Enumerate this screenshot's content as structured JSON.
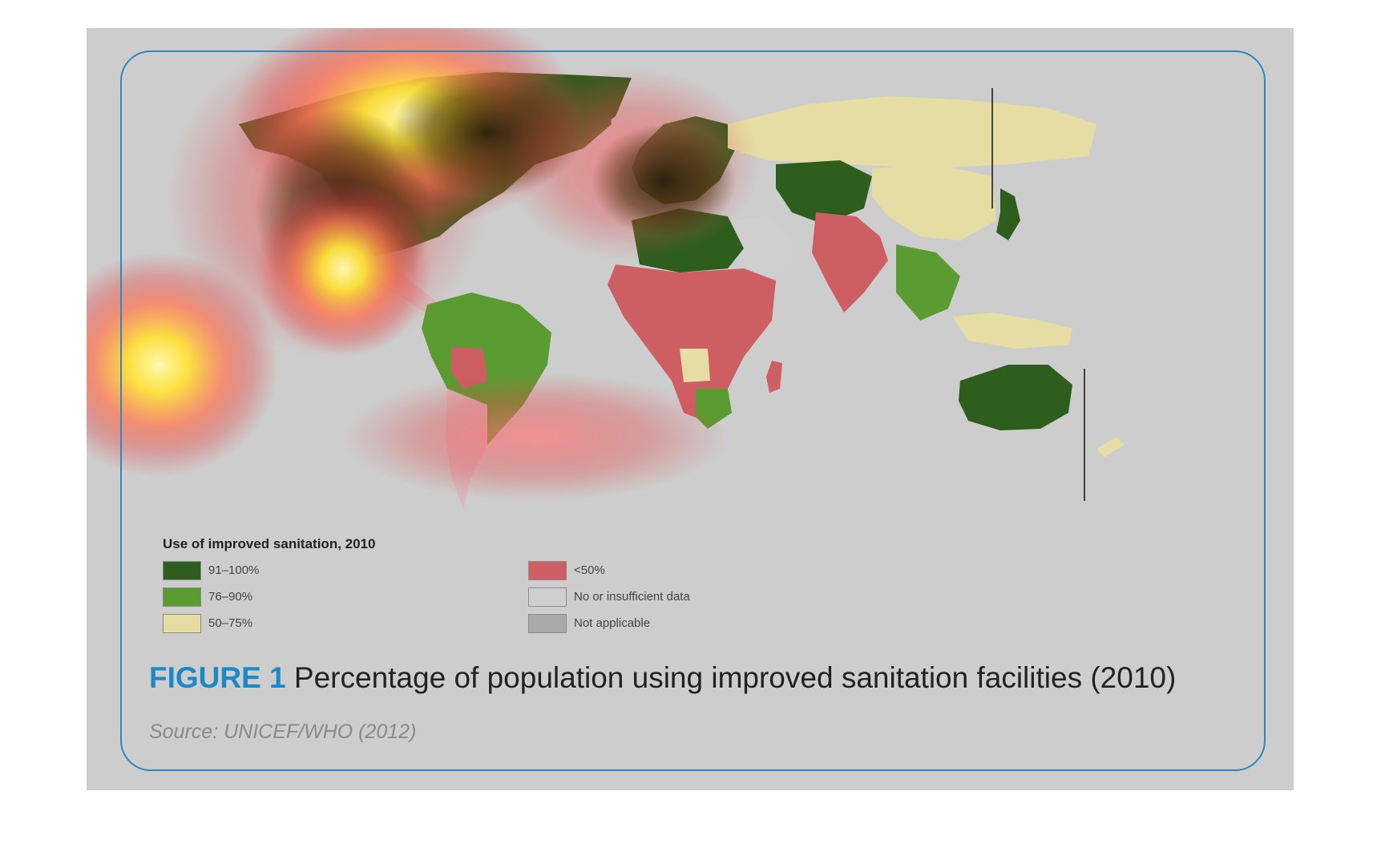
{
  "figure": {
    "label": "FIGURE 1",
    "title": "Percentage of population using improved sanitation facilities (2010)",
    "source": "Source: UNICEF/WHO (2012)"
  },
  "legend": {
    "title": "Use of improved sanitation, 2010",
    "items": [
      {
        "label": "91–100%",
        "color": "#2d5e1e"
      },
      {
        "label": "76–90%",
        "color": "#5b9c32"
      },
      {
        "label": "50–75%",
        "color": "#e5dda4"
      },
      {
        "label": "<50%",
        "color": "#cd5e63"
      },
      {
        "label": "No or insufficient data",
        "color": "#cfcfcf"
      },
      {
        "label": "Not applicable",
        "color": "#a9a9a9"
      }
    ]
  },
  "colors": {
    "panel_background": "#cdcdcd",
    "frame_border": "#2b89c0",
    "caption_label": "#1e88c6",
    "heatmap_overlay": [
      "#fff6a8",
      "#ffe23a",
      "#ff8c5a",
      "#e24a4a"
    ]
  }
}
